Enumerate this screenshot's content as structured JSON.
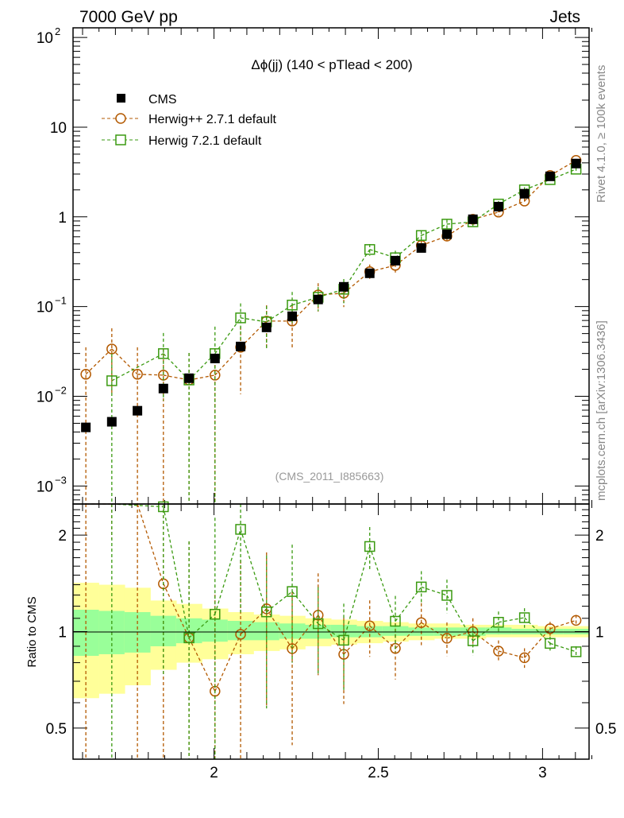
{
  "header": {
    "left": "7000 GeV pp",
    "right": "Jets"
  },
  "side": {
    "rivet": "Rivet 4.1.0, ≥ 100k events",
    "mcplots": "mcplots.cern.ch [arXiv:1306.3436]"
  },
  "colors": {
    "cms": "#000000",
    "herwigpp": "#b35900",
    "herwig7": "#3a9a10",
    "band_total": "#ffff99",
    "band_stat": "#99ff99"
  },
  "chart_data": {
    "type": "scatter",
    "title": "Δϕ(jj) (140 < pTlead <  200)",
    "analysis": "(CMS_2011_I885663)",
    "ylabel_ratio": "Ratio to CMS",
    "yscale": "log",
    "ylim": [
      0.00063,
      128
    ],
    "ratio_ylim": [
      0.4,
      2.5
    ],
    "xlim": [
      1.571,
      3.1416
    ],
    "xticks": [
      "2",
      "2.5",
      "3"
    ],
    "yticks": [
      "10^-3",
      "10^-2",
      "10^-1",
      "1",
      "10",
      "10^2"
    ],
    "ratio_ticks": [
      "0.5",
      "1",
      "2"
    ],
    "legend": [
      "CMS",
      "Herwig++ 2.7.1 default",
      "Herwig 7.2.1 default"
    ],
    "legend_position": "top-left",
    "x": [
      1.61,
      1.689,
      1.767,
      1.846,
      1.924,
      2.003,
      2.081,
      2.16,
      2.238,
      2.317,
      2.395,
      2.474,
      2.552,
      2.631,
      2.709,
      2.788,
      2.866,
      2.945,
      3.023,
      3.102
    ],
    "series": [
      {
        "name": "CMS",
        "values": [
          0.0045,
          0.0052,
          0.0069,
          0.0122,
          0.0159,
          0.0264,
          0.0359,
          0.0586,
          0.078,
          0.12,
          0.166,
          0.235,
          0.325,
          0.45,
          0.64,
          0.94,
          1.3,
          1.81,
          2.83,
          3.93
        ],
        "band_total": [
          [
            0.62,
            1.42
          ],
          [
            0.64,
            1.4
          ],
          [
            0.68,
            1.37
          ],
          [
            0.76,
            1.25
          ],
          [
            0.8,
            1.22
          ],
          [
            0.82,
            1.18
          ],
          [
            0.85,
            1.15
          ],
          [
            0.87,
            1.13
          ],
          [
            0.88,
            1.12
          ],
          [
            0.9,
            1.1
          ],
          [
            0.91,
            1.09
          ],
          [
            0.92,
            1.08
          ],
          [
            0.93,
            1.07
          ],
          [
            0.94,
            1.06
          ],
          [
            0.95,
            1.06
          ],
          [
            0.95,
            1.05
          ],
          [
            0.96,
            1.05
          ],
          [
            0.96,
            1.05
          ],
          [
            0.96,
            1.04
          ],
          [
            0.96,
            1.04
          ]
        ],
        "band_stat": [
          [
            0.84,
            1.17
          ],
          [
            0.85,
            1.16
          ],
          [
            0.86,
            1.15
          ],
          [
            0.9,
            1.12
          ],
          [
            0.92,
            1.1
          ],
          [
            0.93,
            1.09
          ],
          [
            0.94,
            1.08
          ],
          [
            0.94,
            1.07
          ],
          [
            0.95,
            1.06
          ],
          [
            0.95,
            1.05
          ],
          [
            0.96,
            1.05
          ],
          [
            0.96,
            1.04
          ],
          [
            0.97,
            1.04
          ],
          [
            0.97,
            1.03
          ],
          [
            0.97,
            1.03
          ],
          [
            0.97,
            1.03
          ],
          [
            0.98,
            1.03
          ],
          [
            0.98,
            1.02
          ],
          [
            0.98,
            1.02
          ],
          [
            0.98,
            1.02
          ]
        ]
      },
      {
        "name": "Herwig++ 2.7.1 default",
        "values": [
          0.0176,
          0.0337,
          0.0176,
          0.0172,
          0.0152,
          0.0172,
          0.0352,
          0.069,
          0.069,
          0.135,
          0.141,
          0.245,
          0.288,
          0.48,
          0.61,
          0.94,
          1.13,
          1.5,
          2.89,
          4.26
        ],
        "rel_err": [
          1,
          0.7,
          1,
          1,
          1,
          1,
          0.7,
          0.5,
          0.5,
          0.35,
          0.3,
          0.2,
          0.2,
          0.15,
          0.12,
          0.1,
          0.08,
          0.07,
          0.05,
          0.04
        ]
      },
      {
        "name": "Herwig 7.2.1 default",
        "values": [
          null,
          0.0149,
          null,
          0.0299,
          0.0152,
          0.0299,
          0.0748,
          0.0675,
          0.104,
          0.127,
          0.156,
          0.433,
          0.35,
          0.62,
          0.83,
          0.88,
          1.39,
          2.0,
          2.6,
          3.4
        ],
        "rel_err": [
          1,
          1,
          1,
          0.7,
          1,
          1,
          0.45,
          0.5,
          0.4,
          0.3,
          0.3,
          0.15,
          0.2,
          0.12,
          0.12,
          0.1,
          0.08,
          0.07,
          0.05,
          0.04
        ]
      }
    ]
  }
}
